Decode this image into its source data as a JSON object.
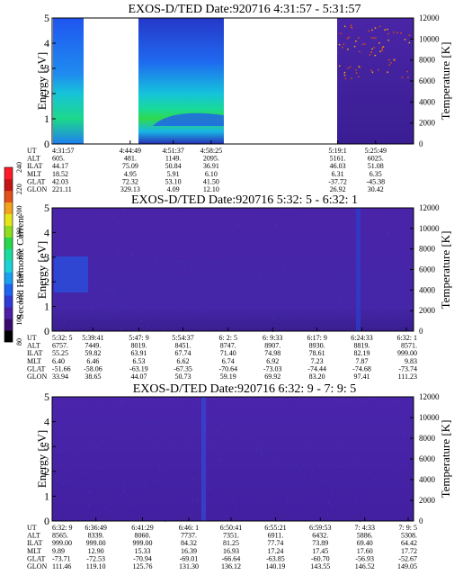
{
  "figure": {
    "colorbar": {
      "label": "Second Harmonic Current",
      "ticks": [
        "80",
        "100",
        "120",
        "140",
        "160",
        "180",
        "200",
        "220",
        "240"
      ],
      "colors": [
        "#000000",
        "#3a0b6e",
        "#4b1fa6",
        "#2f3bd6",
        "#1f63f2",
        "#1aa0f0",
        "#19d3d8",
        "#19dca0",
        "#27d84a",
        "#8ede1e",
        "#e6e41a",
        "#f2a41a",
        "#e2521a",
        "#c41414",
        "#ff1a2a"
      ]
    },
    "ephemeris_labels": [
      "UT",
      "ALT",
      "ILAT",
      "MLT",
      "GLAT",
      "GLON"
    ]
  },
  "chart_data": [
    {
      "type": "heatmap",
      "title": "EXOS-D/TED   Date:920716  4:31:57 - 5:31:57",
      "ylabel": "Energy [eV]",
      "ylim": [
        0,
        5
      ],
      "yticks": [
        "0",
        "1",
        "2",
        "3",
        "4",
        "5"
      ],
      "y2label": "Temperature [K]",
      "y2lim": [
        0,
        12000
      ],
      "y2ticks": [
        "0",
        "2000",
        "4000",
        "6000",
        "8000",
        "10000",
        "12000"
      ],
      "data_segments": [
        "4:31:57-4:35:30",
        "4:44:49-4:58:25",
        "5:19:1-5:31:57"
      ],
      "temperature_points": "scattered points near 6000-11000 K in third segment",
      "ephemeris": [
        {
          "x": 0.0,
          "UT": "4:31:57",
          "ALT": "605.",
          "ILAT": "44.17",
          "MLT": "18.52",
          "GLAT": "42.03",
          "GLON": "221.11"
        },
        {
          "x": 0.216,
          "UT": "4:44:49",
          "ALT": "481.",
          "ILAT": "75.09",
          "MLT": "4.95",
          "GLAT": "72.32",
          "GLON": "329.13"
        },
        {
          "x": 0.335,
          "UT": "4:51:37",
          "ALT": "1149.",
          "ILAT": "50.84",
          "MLT": "5.91",
          "GLAT": "53.10",
          "GLON": "4.09"
        },
        {
          "x": 0.44,
          "UT": "4:58:25",
          "ALT": "2095.",
          "ILAT": "36.91",
          "MLT": "6.10",
          "GLAT": "41.50",
          "GLON": "12.10"
        },
        {
          "x": 0.79,
          "UT": "5:19:1",
          "ALT": "5161.",
          "ILAT": "46.03",
          "MLT": "6.31",
          "GLAT": "-37.72",
          "GLON": "26.92"
        },
        {
          "x": 0.895,
          "UT": "5:25:49",
          "ALT": "6025.",
          "ILAT": "51.08",
          "MLT": "6.35",
          "GLAT": "-45.38",
          "GLON": "30.42"
        }
      ]
    },
    {
      "type": "heatmap",
      "title": "EXOS-D/TED   Date:920716  5:32: 5 - 6:32: 1",
      "ylabel": "Energy [eV]",
      "ylim": [
        0,
        5
      ],
      "yticks": [
        "0",
        "1",
        "2",
        "3",
        "4",
        "5"
      ],
      "y2label": "Temperature [K]",
      "y2lim": [
        0,
        12000
      ],
      "y2ticks": [
        "0",
        "2000",
        "4000",
        "6000",
        "8000",
        "10000",
        "12000"
      ],
      "ephemeris": [
        {
          "x": 0.0,
          "UT": "5:32: 5",
          "ALT": "6757.",
          "ILAT": "55.25",
          "MLT": "6.40",
          "GLAT": "-51.66",
          "GLON": "33.94"
        },
        {
          "x": 0.113,
          "UT": "5:39:41",
          "ALT": "7449.",
          "ILAT": "59.82",
          "MLT": "6.46",
          "GLAT": "-58.06",
          "GLON": "38.65"
        },
        {
          "x": 0.24,
          "UT": "5:47: 9",
          "ALT": "8019.",
          "ILAT": "63.91",
          "MLT": "6.53",
          "GLAT": "-63.19",
          "GLON": "44.07"
        },
        {
          "x": 0.362,
          "UT": "5:54:37",
          "ALT": "8451.",
          "ILAT": "67.74",
          "MLT": "6.62",
          "GLAT": "-67.35",
          "GLON": "50.73"
        },
        {
          "x": 0.487,
          "UT": "6: 2: 5",
          "ALT": "8747.",
          "ILAT": "71.40",
          "MLT": "6.74",
          "GLAT": "-70.64",
          "GLON": "59.19"
        },
        {
          "x": 0.61,
          "UT": "6: 9:33",
          "ALT": "8907.",
          "ILAT": "74.98",
          "MLT": "6.92",
          "GLAT": "-73.03",
          "GLON": "69.92"
        },
        {
          "x": 0.733,
          "UT": "6:17: 9",
          "ALT": "8930.",
          "ILAT": "78.61",
          "MLT": "7.23",
          "GLAT": "-74.44",
          "GLON": "83.20"
        },
        {
          "x": 0.857,
          "UT": "6:24:33",
          "ALT": "8819.",
          "ILAT": "82.19",
          "MLT": "7.87",
          "GLAT": "-74.68",
          "GLON": "97.41"
        },
        {
          "x": 0.98,
          "UT": "6:32: 1",
          "ALT": "8571.",
          "ILAT": "999.00",
          "MLT": "9.83",
          "GLAT": "-73.74",
          "GLON": "111.23"
        }
      ]
    },
    {
      "type": "heatmap",
      "title": "EXOS-D/TED   Date:920716  6:32: 9 - 7: 9: 5",
      "ylabel": "Energy [eV]",
      "ylim": [
        0,
        5
      ],
      "yticks": [
        "0",
        "1",
        "2",
        "3",
        "4",
        "5"
      ],
      "y2label": "Temperature [K]",
      "y2lim": [
        0,
        12000
      ],
      "y2ticks": [
        "0",
        "2000",
        "4000",
        "6000",
        "8000",
        "10000",
        "12000"
      ],
      "ephemeris": [
        {
          "x": 0.0,
          "UT": "6:32: 9",
          "ALT": "8565.",
          "ILAT": "999.00",
          "MLT": "9.89",
          "GLAT": "-73.71",
          "GLON": "111.46"
        },
        {
          "x": 0.121,
          "UT": "6:36:49",
          "ALT": "8339.",
          "ILAT": "999.00",
          "MLT": "12.90",
          "GLAT": "-72.53",
          "GLON": "119.10"
        },
        {
          "x": 0.25,
          "UT": "6:41:29",
          "ALT": "8060.",
          "ILAT": "999.00",
          "MLT": "15.33",
          "GLAT": "-70.94",
          "GLON": "125.76"
        },
        {
          "x": 0.378,
          "UT": "6:46: 1",
          "ALT": "7737.",
          "ILAT": "84.32",
          "MLT": "16.39",
          "GLAT": "-69.01",
          "GLON": "131.30"
        },
        {
          "x": 0.495,
          "UT": "6:50:41",
          "ALT": "7351.",
          "ILAT": "81.25",
          "MLT": "16.93",
          "GLAT": "-66.64",
          "GLON": "136.12"
        },
        {
          "x": 0.618,
          "UT": "6:55:21",
          "ALT": "6911.",
          "ILAT": "77.74",
          "MLT": "17.24",
          "GLAT": "-63.85",
          "GLON": "140.19"
        },
        {
          "x": 0.742,
          "UT": "6:59:53",
          "ALT": "6432.",
          "ILAT": "73.89",
          "MLT": "17.45",
          "GLAT": "-60.70",
          "GLON": "143.55"
        },
        {
          "x": 0.865,
          "UT": "7: 4:33",
          "ALT": "5886.",
          "ILAT": "69.40",
          "MLT": "17.60",
          "GLAT": "-56.93",
          "GLON": "146.52"
        },
        {
          "x": 0.985,
          "UT": "7: 9: 5",
          "ALT": "5308.",
          "ILAT": "64.42",
          "MLT": "17.72",
          "GLAT": "-52.67",
          "GLON": "149.05"
        }
      ]
    }
  ]
}
